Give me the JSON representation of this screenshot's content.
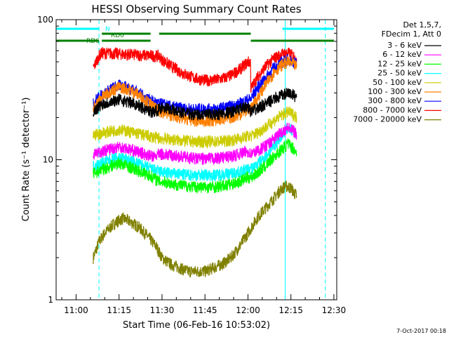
{
  "chart_data": {
    "type": "line",
    "title": "HESSI Observing Summary Count Rates",
    "xlabel": "Start Time (06-Feb-16 10:53:02)",
    "ylabel": "Count Rate (s⁻¹ detector⁻¹)",
    "yscale": "log",
    "ylim": [
      1,
      100
    ],
    "xlim": [
      "10:53:02",
      "12:31:00"
    ],
    "x_ticks": [
      "11:00",
      "11:15",
      "11:30",
      "11:45",
      "12:00",
      "12:15",
      "12:30"
    ],
    "y_ticks": [
      "1",
      "10",
      "100"
    ],
    "grid": false,
    "legend_position": "top-right",
    "legend_header": [
      "Det 1,5,7,",
      "FDecim 1, Att 0"
    ],
    "series": [
      {
        "name": "3 - 6 keV",
        "color": "#000000",
        "x": [
          "11:06",
          "11:07",
          "11:08",
          "11:09",
          "11:12",
          "11:15",
          "11:18",
          "11:21",
          "11:24",
          "11:27",
          "11:29",
          "11:30",
          "11:33",
          "11:36",
          "11:39",
          "11:42",
          "11:45",
          "11:48",
          "11:51",
          "11:54",
          "11:57",
          "12:00",
          "12:01",
          "12:03",
          "12:06",
          "12:09",
          "12:12",
          "12:14",
          "12:16",
          "12:17"
        ],
        "y": [
          22,
          23,
          24,
          25,
          26,
          27,
          26,
          25,
          23,
          22,
          23,
          24,
          23,
          22,
          21.5,
          21,
          21,
          21,
          21.5,
          22,
          23,
          24,
          22,
          23,
          25,
          27,
          29,
          30,
          29,
          28
        ]
      },
      {
        "name": "6 - 12 keV",
        "color": "#ff00ff",
        "x": [
          "11:06",
          "11:09",
          "11:12",
          "11:15",
          "11:18",
          "11:21",
          "11:24",
          "11:27",
          "11:29",
          "11:30",
          "11:33",
          "11:36",
          "11:39",
          "11:42",
          "11:45",
          "11:48",
          "11:51",
          "11:54",
          "11:57",
          "12:00",
          "12:01",
          "12:03",
          "12:06",
          "12:09",
          "12:12",
          "12:14",
          "12:16",
          "12:17"
        ],
        "y": [
          11,
          11.5,
          12,
          12.5,
          12,
          11.5,
          11,
          10.5,
          11,
          11,
          10.8,
          10.6,
          10.4,
          10.2,
          10.2,
          10.2,
          10.4,
          10.6,
          11,
          11.5,
          11,
          11.5,
          12.5,
          14,
          16,
          17,
          16,
          15
        ]
      },
      {
        "name": "12 - 25 keV",
        "color": "#00ff00",
        "x": [
          "11:06",
          "11:09",
          "11:12",
          "11:15",
          "11:18",
          "11:21",
          "11:24",
          "11:27",
          "11:29",
          "11:30",
          "11:33",
          "11:36",
          "11:39",
          "11:42",
          "11:45",
          "11:48",
          "11:51",
          "11:54",
          "11:57",
          "12:00",
          "12:01",
          "12:03",
          "12:06",
          "12:09",
          "12:12",
          "12:14",
          "12:16",
          "12:17"
        ],
        "y": [
          8,
          8.5,
          9,
          9.5,
          9,
          8.5,
          8,
          7.5,
          7,
          7,
          6.8,
          6.6,
          6.5,
          6.4,
          6.4,
          6.4,
          6.5,
          6.7,
          7,
          7.5,
          7.5,
          8,
          9,
          10.5,
          12,
          13,
          12,
          11
        ]
      },
      {
        "name": "25 - 50 keV",
        "color": "#00ffff",
        "x": [
          "11:06",
          "11:09",
          "11:12",
          "11:15",
          "11:18",
          "11:21",
          "11:24",
          "11:27",
          "11:29",
          "11:30",
          "11:33",
          "11:36",
          "11:39",
          "11:42",
          "11:45",
          "11:48",
          "11:51",
          "11:54",
          "11:57",
          "12:00",
          "12:01",
          "12:03",
          "12:06",
          "12:09",
          "12:12",
          "12:14",
          "12:16",
          "12:17"
        ],
        "y": [
          9,
          9.5,
          10,
          10.5,
          10,
          9.5,
          9,
          8.5,
          8.3,
          8.2,
          8,
          7.9,
          7.8,
          7.8,
          7.8,
          7.8,
          7.9,
          8,
          8.2,
          8.6,
          8.6,
          9.2,
          10.5,
          12.5,
          15,
          17,
          16,
          15
        ]
      },
      {
        "name": "50 - 100 keV",
        "color": "#cccc00",
        "x": [
          "11:06",
          "11:09",
          "11:12",
          "11:15",
          "11:18",
          "11:21",
          "11:24",
          "11:27",
          "11:29",
          "11:30",
          "11:33",
          "11:36",
          "11:39",
          "11:42",
          "11:45",
          "11:48",
          "11:51",
          "11:54",
          "11:57",
          "12:00",
          "12:01",
          "12:03",
          "12:06",
          "12:09",
          "12:12",
          "12:14",
          "12:16",
          "12:17"
        ],
        "y": [
          15,
          15.5,
          16,
          16.5,
          16,
          15.5,
          15,
          14.5,
          14.3,
          14.2,
          14,
          13.8,
          13.6,
          13.5,
          13.5,
          13.5,
          13.6,
          13.8,
          14.2,
          14.8,
          14.8,
          15.5,
          17,
          19,
          21,
          22,
          21,
          20
        ]
      },
      {
        "name": "100 - 300 keV",
        "color": "#ff8000",
        "x": [
          "11:06",
          "11:07",
          "11:09",
          "11:12",
          "11:15",
          "11:18",
          "11:21",
          "11:24",
          "11:27",
          "11:29",
          "11:30",
          "11:33",
          "11:36",
          "11:39",
          "11:42",
          "11:45",
          "11:48",
          "11:51",
          "11:54",
          "11:57",
          "12:00",
          "12:01",
          "12:03",
          "12:06",
          "12:09",
          "12:12",
          "12:14",
          "12:16",
          "12:17"
        ],
        "y": [
          23,
          25,
          28,
          31,
          33,
          32,
          30,
          27,
          24,
          22,
          22,
          21,
          20,
          19.5,
          19,
          19,
          19,
          19.5,
          20,
          21,
          23,
          23,
          27,
          34,
          42,
          48,
          50,
          48,
          46
        ]
      },
      {
        "name": "300 - 800 keV",
        "color": "#0000ff",
        "x": [
          "11:06",
          "11:07",
          "11:09",
          "11:12",
          "11:15",
          "11:18",
          "11:21",
          "11:24",
          "11:27",
          "11:29",
          "11:30",
          "11:33",
          "11:36",
          "11:39",
          "11:42",
          "11:45",
          "11:48",
          "11:51",
          "11:54",
          "11:57",
          "12:00",
          "12:01",
          "12:03",
          "12:06",
          "12:09",
          "12:12",
          "12:14",
          "12:16",
          "12:17"
        ],
        "y": [
          25,
          27,
          29,
          32,
          34,
          33,
          31,
          28,
          26,
          25,
          25,
          24,
          23.5,
          23,
          23,
          23,
          23,
          23.5,
          24,
          25,
          27,
          27,
          32,
          38,
          45,
          50,
          52,
          50,
          48
        ]
      },
      {
        "name": "800 - 7000 keV",
        "color": "#ff0000",
        "x": [
          "11:06",
          "11:07",
          "11:08",
          "11:09",
          "11:29",
          "11:30",
          "11:33",
          "11:36",
          "11:39",
          "11:42",
          "11:45",
          "11:48",
          "11:51",
          "11:54",
          "11:57",
          "12:00",
          "12:01",
          "12:03",
          "12:06",
          "12:09",
          "12:12",
          "12:14",
          "12:16",
          "12:17"
        ],
        "y": [
          45,
          50,
          55,
          58,
          55,
          52,
          47,
          43,
          40,
          38,
          37,
          37,
          38,
          40,
          44,
          50,
          32,
          38,
          46,
          53,
          57,
          58,
          55,
          50
        ]
      },
      {
        "name": "7000 - 20000 keV",
        "color": "#808000",
        "x": [
          "11:06",
          "11:08",
          "11:10",
          "11:12",
          "11:14",
          "11:16",
          "11:18",
          "11:20",
          "11:22",
          "11:24",
          "11:26",
          "11:28",
          "11:30",
          "11:33",
          "11:36",
          "11:39",
          "11:42",
          "11:45",
          "11:48",
          "11:51",
          "11:54",
          "11:57",
          "12:00",
          "12:03",
          "12:06",
          "12:09",
          "12:11",
          "12:13",
          "12:15",
          "12:17"
        ],
        "y": [
          2,
          2.6,
          3,
          3.3,
          3.6,
          3.8,
          3.7,
          3.5,
          3.3,
          3,
          2.7,
          2.4,
          2,
          1.8,
          1.7,
          1.6,
          1.6,
          1.6,
          1.7,
          1.8,
          2,
          2.4,
          3,
          3.8,
          4.5,
          5.3,
          6,
          6.5,
          6.3,
          5.5
        ]
      }
    ],
    "annotations": {
      "flags": [
        {
          "label": "N",
          "color": "#00ffff",
          "segments": [
            [
              "10:53:02",
              "11:08"
            ],
            [
              "12:12",
              "12:30"
            ]
          ]
        },
        {
          "label": "RD0",
          "color": "#008000",
          "segments": [
            [
              "11:09",
              "11:26"
            ],
            [
              "11:29",
              "12:01"
            ]
          ]
        },
        {
          "label": "RD6",
          "color": "#008000",
          "segments": [
            [
              "10:53:02",
              "11:08"
            ],
            [
              "11:09",
              "11:26"
            ],
            [
              "12:01",
              "12:18"
            ],
            [
              "12:18",
              "12:30"
            ]
          ]
        }
      ],
      "vlines": [
        {
          "x": "11:08",
          "color": "#00ffff",
          "style": "dashed"
        },
        {
          "x": "12:13",
          "color": "#00ffff",
          "style": "solid"
        },
        {
          "x": "12:27",
          "color": "#00ffff",
          "style": "dashed"
        }
      ]
    }
  },
  "footer": {
    "timestamp": "7-Oct-2017 00:18"
  }
}
